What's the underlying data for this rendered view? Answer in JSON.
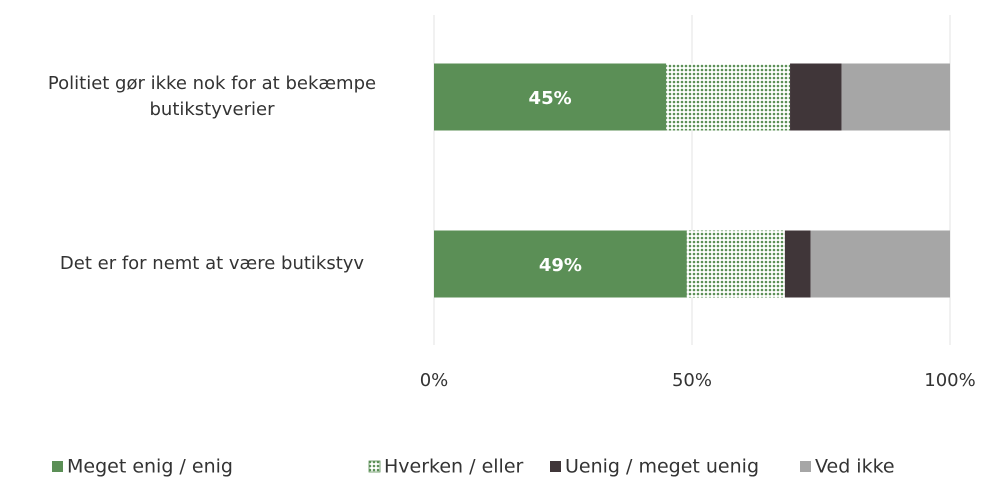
{
  "chart_data": {
    "type": "stacked_barh",
    "categories": [
      "Politiet gør ikke nok for at bekæmpe butikstyverier",
      "Det er for nemt at være butikstyv"
    ],
    "series": [
      {
        "name": "Meget enig / enig",
        "color": "#5b8f56",
        "values": [
          45,
          49
        ],
        "value_labels": [
          "45%",
          "49%"
        ]
      },
      {
        "name": "Hverken / eller",
        "color": "#5b8f56",
        "pattern": "dots",
        "values": [
          24,
          19
        ]
      },
      {
        "name": "Uenig / meget uenig",
        "color": "#403639",
        "values": [
          10,
          5
        ]
      },
      {
        "name": "Ved ikke",
        "color": "#a6a6a6",
        "values": [
          21,
          27
        ]
      }
    ],
    "xlim": [
      0,
      100
    ],
    "xticks": [
      {
        "value": 0,
        "label": "0%"
      },
      {
        "value": 50,
        "label": "50%"
      },
      {
        "value": 100,
        "label": "100%"
      }
    ],
    "grid": true,
    "legend": "bottom"
  }
}
